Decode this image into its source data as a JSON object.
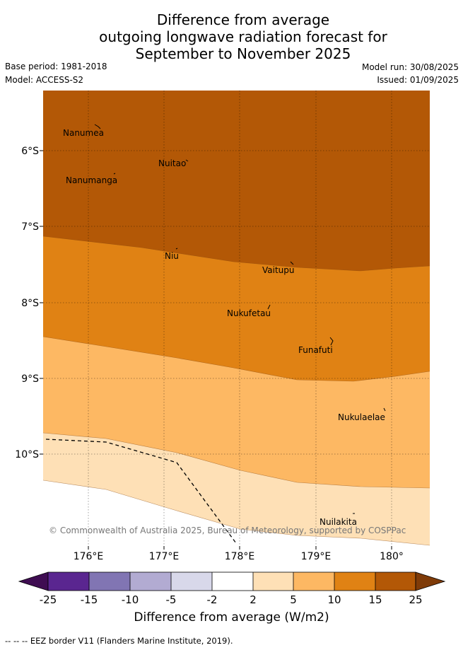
{
  "title": {
    "line1": "Difference from average",
    "line2": "outgoing longwave radiation forecast for",
    "line3": "September to November 2025"
  },
  "meta": {
    "base_period": "Base period: 1981-2018",
    "model": "Model: ACCESS-S2",
    "model_run": "Model run: 30/08/2025",
    "issued": "Issued: 01/09/2025"
  },
  "map": {
    "lon_ticks": [
      "176°E",
      "177°E",
      "178°E",
      "179°E",
      "180°"
    ],
    "lat_ticks": [
      "6°S",
      "7°S",
      "8°S",
      "9°S",
      "10°S"
    ],
    "places": [
      {
        "name": "Nanumea"
      },
      {
        "name": "Nuitao"
      },
      {
        "name": "Nanumanga"
      },
      {
        "name": "Niu"
      },
      {
        "name": "Vaitupu"
      },
      {
        "name": "Nukufetau"
      },
      {
        "name": "Funafuti"
      },
      {
        "name": "Nukulaelae"
      },
      {
        "name": "Nuilakita"
      }
    ],
    "copyright": "© Commonwealth of Australia 2025, Bureau of Meteorology, supported by COSPPac"
  },
  "colorbar": {
    "ticks": [
      "-25",
      "-15",
      "-10",
      "-5",
      "-2",
      "2",
      "5",
      "10",
      "15",
      "25"
    ],
    "colors": [
      "#3f0d52",
      "#5a2690",
      "#8175b3",
      "#b2abd2",
      "#d8d8ea",
      "#ffffff",
      "#fee0b6",
      "#fdb863",
      "#e08214",
      "#b35806",
      "#7f3b08"
    ],
    "title": "Difference from average (W/m2)"
  },
  "footnote": "--  --  -- EEZ border V11 (Flanders Marine Institute, 2019)."
}
